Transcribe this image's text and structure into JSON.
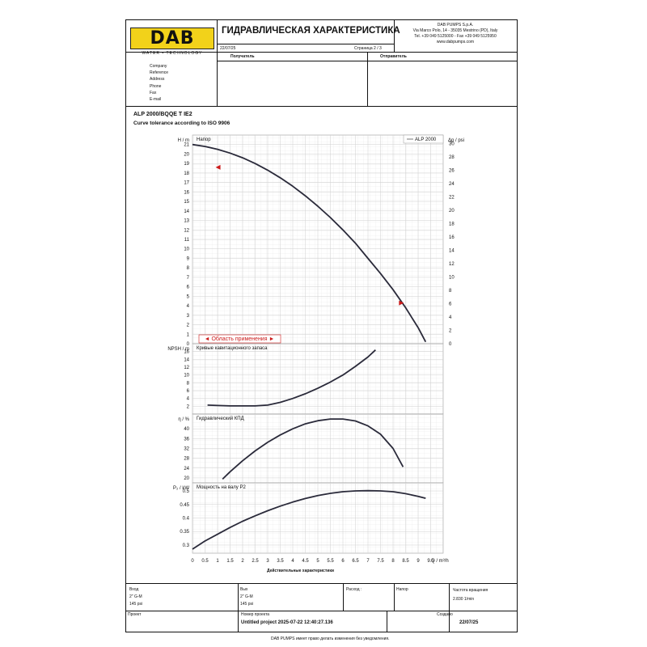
{
  "header": {
    "logo_text": "DAB",
    "logo_tagline": "WATER • TECHNOLOGY",
    "title": "ГИДРАВЛИЧЕСКАЯ ХАРАКТЕРИСТИКА",
    "date": "22/07/25",
    "page_label": "Страница 2 / 3",
    "company_line1": "DAB PUMPS S.p.A.",
    "company_line2": "Via Marco Polo, 14 - 35035 Mestrino (PD), Italy",
    "company_line3": "Tel. +39 049 5125000 - Fax +39 049 5125950",
    "company_line4": "www.dabpumps.com"
  },
  "contacts": {
    "receiver_label": "Получатель",
    "sender_label": "Отправитель",
    "fields": [
      "Company",
      "Reference",
      "Address",
      "Phone",
      "Fax",
      "E-mail"
    ]
  },
  "product": {
    "model": "ALP 2000/BQQE T IE2",
    "tolerance": "Curve tolerance according to ISO 9906"
  },
  "chart_data": [
    {
      "type": "line",
      "title": "Напор",
      "xlabel": "Q / m³/h",
      "ylabel": "H / m",
      "ylabel_right": "Δp / psi",
      "legend": "ALP 2000",
      "xlim": [
        0,
        10
      ],
      "ylim": [
        0,
        22
      ],
      "yticks": [
        0,
        1,
        2,
        3,
        4,
        5,
        6,
        7,
        8,
        9,
        10,
        11,
        12,
        13,
        14,
        15,
        16,
        17,
        18,
        19,
        20,
        21
      ],
      "yticks_right": [
        0,
        2,
        4,
        6,
        8,
        10,
        12,
        14,
        16,
        18,
        20,
        22,
        24,
        26,
        28,
        30
      ],
      "operating_range_label": "◄ Область применения ►",
      "series": [
        {
          "name": "ALP 2000",
          "x": [
            0,
            0.5,
            1,
            1.5,
            2,
            2.5,
            3,
            3.5,
            4,
            4.5,
            5,
            5.5,
            6,
            6.5,
            7,
            7.5,
            8,
            8.5,
            9,
            9.3
          ],
          "y": [
            21.0,
            20.8,
            20.5,
            20.1,
            19.6,
            19.0,
            18.3,
            17.5,
            16.6,
            15.6,
            14.5,
            13.3,
            12.0,
            10.6,
            9.0,
            7.4,
            5.7,
            3.8,
            1.7,
            0.2
          ]
        }
      ],
      "markers": [
        {
          "x": 1.05,
          "y": 18.6
        },
        {
          "x": 8.3,
          "y": 4.3
        }
      ]
    },
    {
      "type": "line",
      "title": "Кривые кавитационного запаса",
      "ylabel": "NPSH / m",
      "xlim": [
        0,
        10
      ],
      "ylim": [
        0,
        18
      ],
      "yticks": [
        2,
        4,
        6,
        8,
        10,
        12,
        14,
        16
      ],
      "series": [
        {
          "name": "NPSH",
          "x": [
            0.6,
            1,
            1.5,
            2,
            2.5,
            3,
            3.5,
            4,
            4.5,
            5,
            5.5,
            6,
            6.5,
            7,
            7.3
          ],
          "y": [
            2.3,
            2.2,
            2.1,
            2.1,
            2.1,
            2.3,
            3.0,
            4.0,
            5.2,
            6.6,
            8.2,
            10.0,
            12.2,
            14.6,
            16.4
          ]
        }
      ]
    },
    {
      "type": "line",
      "title": "Гидравлический КПД",
      "ylabel": "η / %",
      "xlim": [
        0,
        10
      ],
      "ylim": [
        18,
        46
      ],
      "yticks": [
        20,
        24,
        28,
        32,
        36,
        40
      ],
      "series": [
        {
          "name": "КПД",
          "x": [
            1.2,
            1.5,
            2,
            2.5,
            3,
            3.5,
            4,
            4.5,
            5,
            5.5,
            6,
            6.5,
            7,
            7.5,
            8,
            8.4
          ],
          "y": [
            19.5,
            22.5,
            27.0,
            31.0,
            34.5,
            37.5,
            40.0,
            42.0,
            43.3,
            44.0,
            44.0,
            43.2,
            41.2,
            37.8,
            32.0,
            24.5
          ]
        }
      ]
    },
    {
      "type": "line",
      "title": "Мощность на валу P2",
      "ylabel": "P₂ / kW",
      "xlabel": "Q / m³/h",
      "xticks": [
        0,
        0.5,
        1,
        1.5,
        2,
        2.5,
        3,
        3.5,
        4,
        4.5,
        5,
        5.5,
        6,
        6.5,
        7,
        7.5,
        8,
        8.5,
        9,
        9.5
      ],
      "xlim": [
        0,
        10
      ],
      "ylim": [
        0.27,
        0.53
      ],
      "yticks": [
        0.3,
        0.35,
        0.4,
        0.45,
        0.5
      ],
      "series": [
        {
          "name": "P2",
          "x": [
            0,
            0.5,
            1,
            1.5,
            2,
            2.5,
            3,
            3.5,
            4,
            4.5,
            5,
            5.5,
            6,
            6.5,
            7,
            7.5,
            8,
            8.5,
            9,
            9.3
          ],
          "y": [
            0.285,
            0.315,
            0.34,
            0.365,
            0.388,
            0.408,
            0.427,
            0.444,
            0.459,
            0.472,
            0.483,
            0.491,
            0.497,
            0.5,
            0.501,
            0.5,
            0.497,
            0.49,
            0.48,
            0.473
          ]
        }
      ]
    }
  ],
  "xaxis_caption": "Действительные характеристики",
  "footer": {
    "inlet_label": "Вход",
    "inlet_size": "2\" G-M",
    "inlet_pressure": "145 psi",
    "outlet_label": "Вых",
    "outlet_size": "2\" G-M",
    "outlet_pressure": "145 psi",
    "flow_label": "Расход :",
    "head_label": "Напор",
    "speed_label": "Частота вращения",
    "speed_value": "2.830 1/min",
    "project_label": "Проект",
    "project_no_label": "Номер проекта",
    "project_no_value": "Untitled project 2025-07-22 12:40:27.136",
    "created_label": "Создано",
    "created_value": "22/07/25",
    "notice": "DAB PUMPS имеет право делать изменения без уведомления."
  }
}
